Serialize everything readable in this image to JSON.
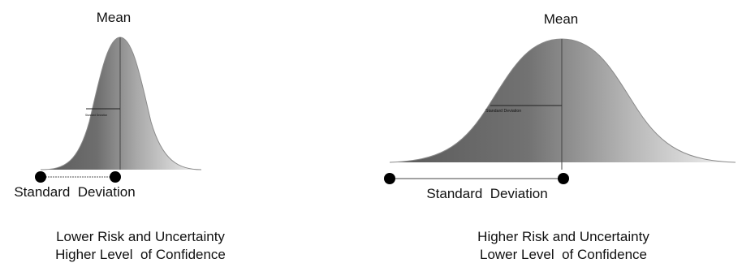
{
  "left_panel": {
    "mean_label": "Mean",
    "inner_label": "Standard Deviation",
    "sd_label": "Standard  Deviation",
    "caption_line1": "Lower Risk and Uncertainty",
    "caption_line2": "Higher Level  of Confidence"
  },
  "right_panel": {
    "mean_label": "Mean",
    "inner_label": "Standard Deviation",
    "sd_label": "Standard  Deviation",
    "caption_line1": "Higher Risk and Uncertainty",
    "caption_line2": "Lower Level  of Confidence"
  },
  "colors": {
    "curve_dark": "#5f5f5f",
    "curve_light": "#f4f4f4",
    "dot": "#000000"
  }
}
